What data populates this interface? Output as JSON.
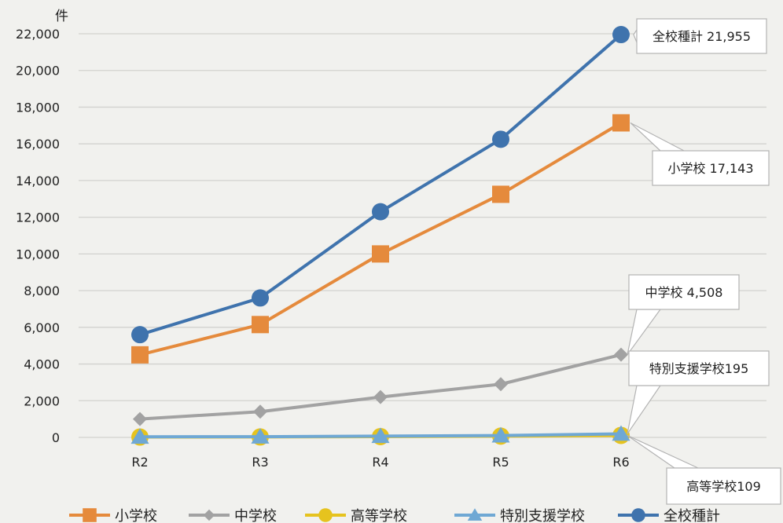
{
  "chart_data": {
    "type": "line",
    "title": "",
    "xlabel": "",
    "ylabel": "件",
    "categories": [
      "R2",
      "R3",
      "R4",
      "R5",
      "R6"
    ],
    "ylim": [
      0,
      22000
    ],
    "yticks": [
      0,
      2000,
      4000,
      6000,
      8000,
      10000,
      12000,
      14000,
      16000,
      18000,
      20000,
      22000
    ],
    "ytick_labels": [
      "0",
      "2,000",
      "4,000",
      "6,000",
      "8,000",
      "10,000",
      "12,000",
      "14,000",
      "16,000",
      "18,000",
      "20,000",
      "22,000"
    ],
    "grid": true,
    "legend_position": "bottom",
    "series": [
      {
        "name": "小学校",
        "color": "#e58a3c",
        "marker": "square",
        "values": [
          4500,
          6150,
          10000,
          13250,
          17143
        ],
        "callout": "小学校 17,143"
      },
      {
        "name": "中学校",
        "color": "#a2a2a2",
        "marker": "diamond",
        "values": [
          1000,
          1400,
          2200,
          2900,
          4508
        ],
        "callout": "中学校 4,508"
      },
      {
        "name": "高等学校",
        "color": "#e6c31e",
        "marker": "circle",
        "values": [
          20,
          25,
          45,
          70,
          109
        ],
        "callout": "高等学校109"
      },
      {
        "name": "特別支援学校",
        "color": "#6fa8d4",
        "marker": "triangle",
        "values": [
          30,
          40,
          70,
          100,
          195
        ],
        "callout": "特別支援学校195"
      },
      {
        "name": "全校種計",
        "color": "#3f73ad",
        "marker": "circle",
        "values": [
          5600,
          7600,
          12300,
          16250,
          21955
        ],
        "callout": "全校種計 21,955"
      }
    ]
  }
}
